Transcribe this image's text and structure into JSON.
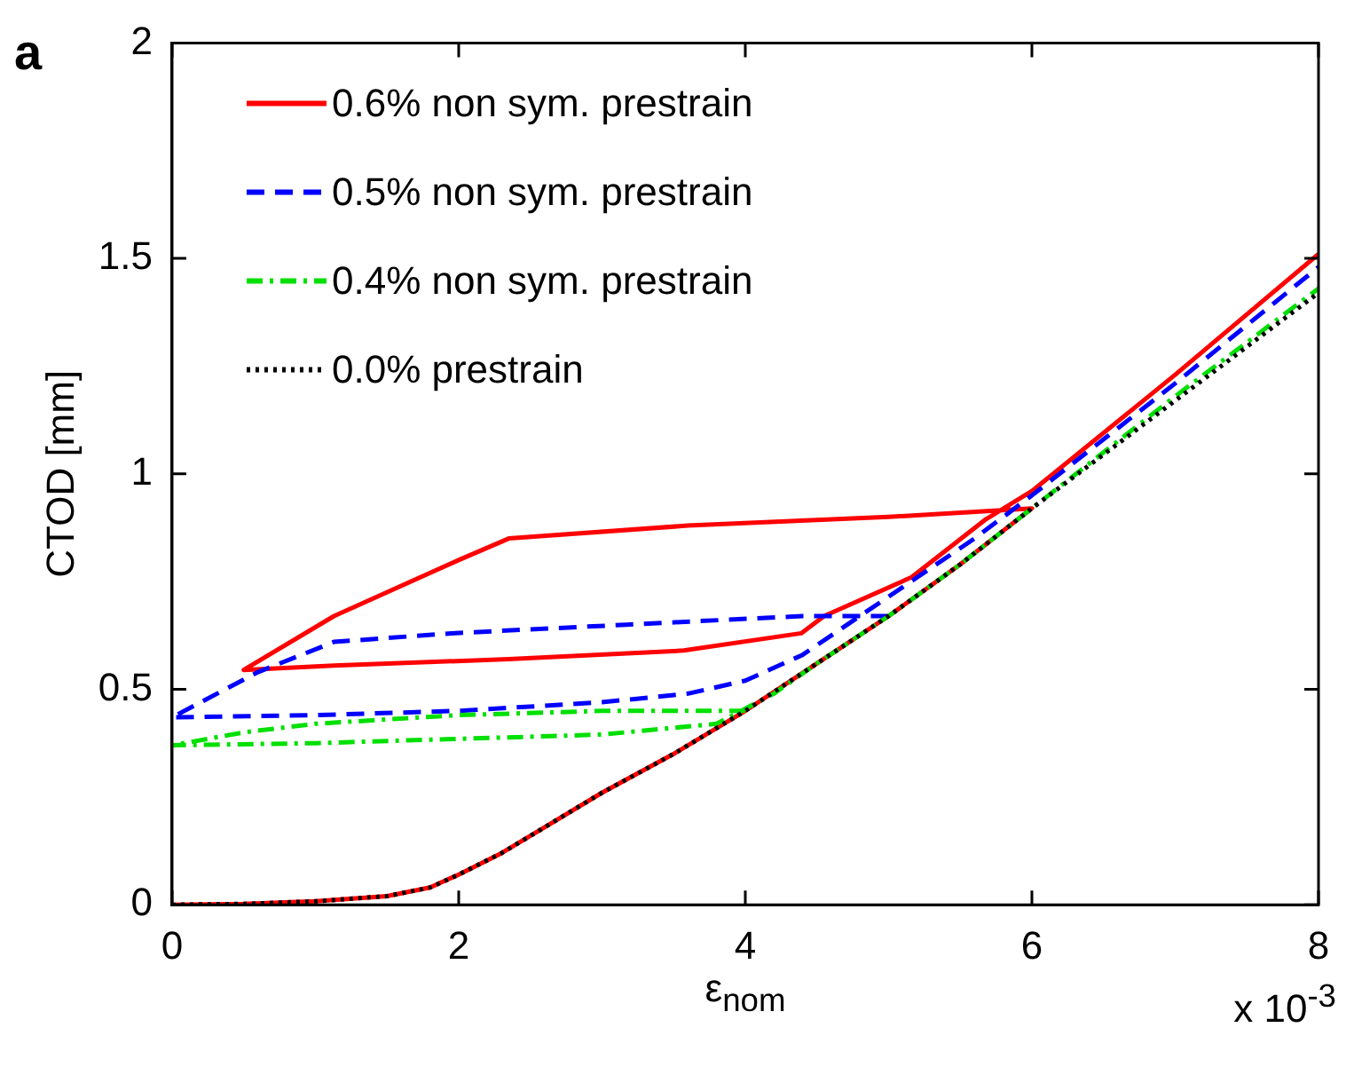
{
  "chart_data": {
    "type": "line",
    "xlabel": "ε$_{nom}$",
    "ylabel": "CTOD [mm]",
    "xlim": [
      0,
      8
    ],
    "xticks": [
      0,
      2,
      4,
      6,
      8
    ],
    "ylim": [
      0,
      2
    ],
    "yticks": [
      0,
      0.5,
      1,
      1.5,
      2
    ],
    "grid": false,
    "legend": "top left",
    "marker": "none",
    "annotations": [
      "a",
      "x 10$^{-3}$"
    ],
    "series": [
      {
        "name": "0.6% non sym. prestrain",
        "color": "#ff0000",
        "line_style": "solid",
        "x": [
          0,
          0.5,
          1,
          1.5,
          1.8,
          2,
          2.3,
          2.6,
          3,
          3.5,
          4,
          4.5,
          5,
          5.5,
          6,
          5,
          3.6,
          2.35,
          2,
          1.13,
          0.5,
          1.13,
          2.35,
          3.57,
          4.39,
          4.55,
          5.16,
          5.68,
          6,
          7,
          8
        ],
        "values": [
          0,
          0.002,
          0.008,
          0.02,
          0.04,
          0.07,
          0.12,
          0.18,
          0.26,
          0.35,
          0.45,
          0.56,
          0.67,
          0.79,
          0.92,
          0.9,
          0.88,
          0.85,
          0.8,
          0.67,
          0.545,
          0.555,
          0.57,
          0.59,
          0.63,
          0.67,
          0.76,
          0.895,
          0.96,
          1.23,
          1.51
        ]
      },
      {
        "name": "0.5% non sym. prestrain",
        "color": "#0000ff",
        "line_style": "dashed",
        "x": [
          5,
          4.4,
          3.17,
          1.95,
          1.13,
          0.6,
          0,
          1,
          2,
          3,
          3.6,
          4,
          4.4,
          4.8,
          5.2,
          5.6,
          6,
          7,
          8
        ],
        "values": [
          0.67,
          0.67,
          0.65,
          0.63,
          0.61,
          0.54,
          0.435,
          0.44,
          0.45,
          0.47,
          0.49,
          0.52,
          0.58,
          0.67,
          0.76,
          0.85,
          0.95,
          1.21,
          1.48
        ]
      },
      {
        "name": "0.4% non sym. prestrain",
        "color": "#00e000",
        "line_style": "dashdot",
        "x": [
          4,
          3,
          2,
          1,
          0.5,
          0,
          1,
          2,
          3,
          3.8,
          4.2,
          4.5,
          5,
          5.5,
          6,
          7,
          8
        ],
        "values": [
          0.45,
          0.45,
          0.44,
          0.42,
          0.4,
          0.37,
          0.375,
          0.385,
          0.395,
          0.42,
          0.49,
          0.56,
          0.67,
          0.79,
          0.92,
          1.18,
          1.43
        ]
      },
      {
        "name": "0.0% prestrain",
        "color": "#000000",
        "line_style": "dotted",
        "x": [
          0,
          0.5,
          1,
          1.5,
          1.8,
          2,
          2.3,
          2.6,
          3,
          3.5,
          4,
          4.5,
          5,
          5.5,
          6,
          7,
          8
        ],
        "values": [
          0,
          0.002,
          0.008,
          0.02,
          0.04,
          0.07,
          0.12,
          0.18,
          0.26,
          0.35,
          0.45,
          0.56,
          0.67,
          0.79,
          0.92,
          1.17,
          1.42
        ]
      }
    ]
  }
}
